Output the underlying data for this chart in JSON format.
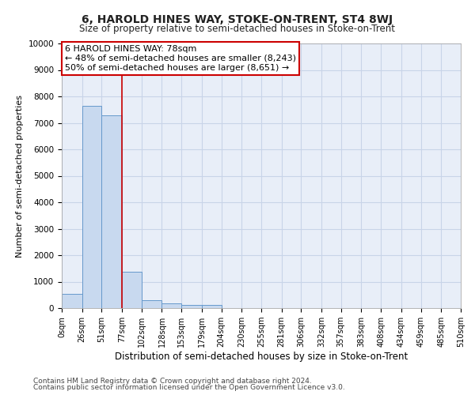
{
  "title": "6, HAROLD HINES WAY, STOKE-ON-TRENT, ST4 8WJ",
  "subtitle": "Size of property relative to semi-detached houses in Stoke-on-Trent",
  "xlabel": "Distribution of semi-detached houses by size in Stoke-on-Trent",
  "ylabel": "Number of semi-detached properties",
  "footer1": "Contains HM Land Registry data © Crown copyright and database right 2024.",
  "footer2": "Contains public sector information licensed under the Open Government Licence v3.0.",
  "bar_edges": [
    0,
    26,
    51,
    77,
    102,
    128,
    153,
    179,
    204,
    230,
    255,
    281,
    306,
    332,
    357,
    383,
    408,
    434,
    459,
    485,
    510
  ],
  "bar_heights": [
    530,
    7650,
    7280,
    1360,
    300,
    170,
    130,
    110,
    0,
    0,
    0,
    0,
    0,
    0,
    0,
    0,
    0,
    0,
    0,
    0
  ],
  "bar_color": "#c8d9ef",
  "bar_edge_color": "#6699cc",
  "bar_edge_width": 0.7,
  "red_line_x": 77,
  "red_line_color": "#cc0000",
  "ylim": [
    0,
    10000
  ],
  "yticks": [
    0,
    1000,
    2000,
    3000,
    4000,
    5000,
    6000,
    7000,
    8000,
    9000,
    10000
  ],
  "annotation_text": "6 HAROLD HINES WAY: 78sqm\n← 48% of semi-detached houses are smaller (8,243)\n50% of semi-detached houses are larger (8,651) →",
  "annotation_box_facecolor": "#ffffff",
  "annotation_box_edgecolor": "#cc0000",
  "grid_color": "#c8d4e8",
  "bg_color": "#e8eef8"
}
